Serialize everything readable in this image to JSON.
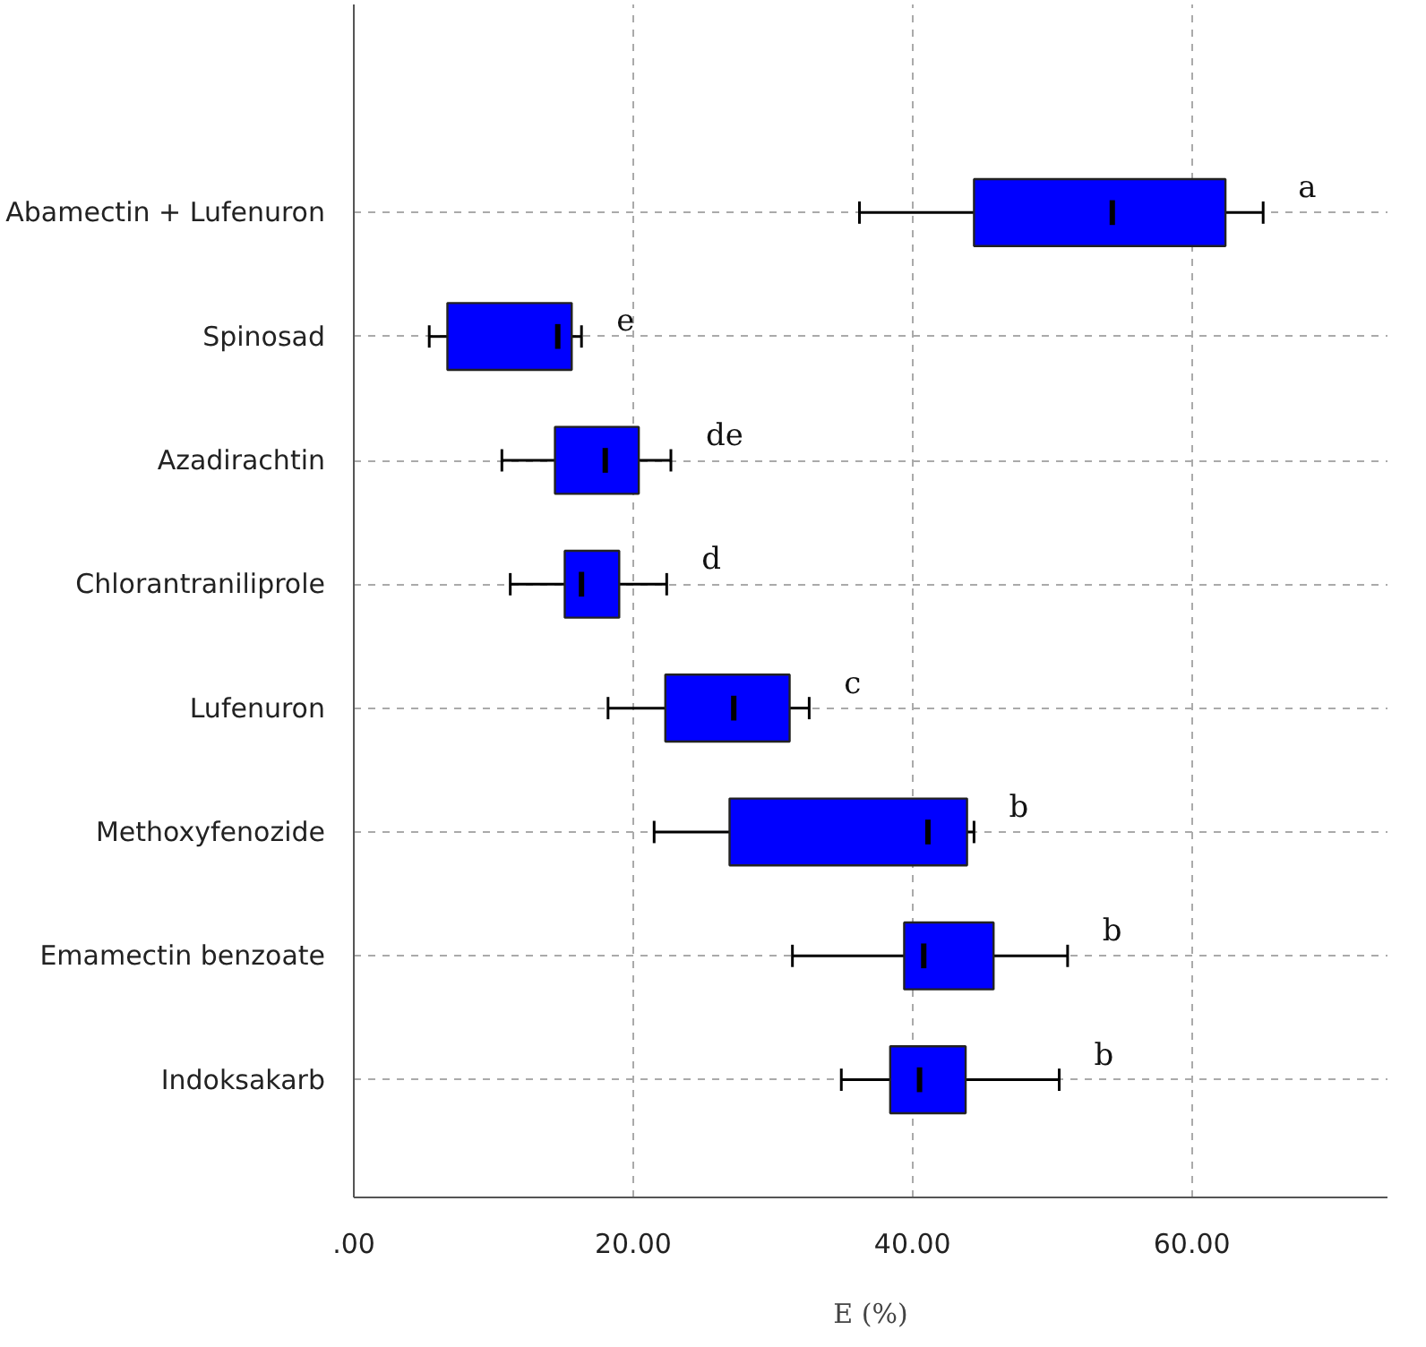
{
  "chart_data": {
    "type": "box",
    "orientation": "horizontal",
    "xlabel": "E (%)",
    "categories": [
      "Abamectin + Lufenuron",
      "Spinosad",
      "Azadirachtin",
      "Chlorantraniliprole",
      "Lufenuron",
      "Methoxyfenozide",
      "Emamectin benzoate",
      "Indoksakarb"
    ],
    "series": [
      {
        "color": "#0000ff",
        "boxes": [
          {
            "low": 36.2,
            "q1": 44.4,
            "median": 54.3,
            "q3": 62.4,
            "high": 65.1
          },
          {
            "low": 5.4,
            "q1": 6.7,
            "median": 14.6,
            "q3": 15.6,
            "high": 16.3
          },
          {
            "low": 10.6,
            "q1": 14.4,
            "median": 18.0,
            "q3": 20.4,
            "high": 22.7
          },
          {
            "low": 11.2,
            "q1": 15.1,
            "median": 16.3,
            "q3": 19.0,
            "high": 22.4
          },
          {
            "low": 18.2,
            "q1": 22.3,
            "median": 27.2,
            "q3": 31.2,
            "high": 32.6
          },
          {
            "low": 21.5,
            "q1": 26.9,
            "median": 41.1,
            "q3": 43.9,
            "high": 44.4
          },
          {
            "low": 31.4,
            "q1": 39.4,
            "median": 40.8,
            "q3": 45.8,
            "high": 51.1
          },
          {
            "low": 34.9,
            "q1": 38.4,
            "median": 40.5,
            "q3": 43.8,
            "high": 50.5
          }
        ]
      }
    ],
    "xlim": [
      0,
      74
    ],
    "xticks": [
      {
        "value": 0,
        "label": ".00"
      },
      {
        "value": 20,
        "label": "20.00"
      },
      {
        "value": 40,
        "label": "40.00"
      },
      {
        "value": 60,
        "label": "60.00"
      }
    ],
    "grid": true,
    "annotations": [
      "a",
      "e",
      "de",
      "d",
      "c",
      "b",
      "b",
      "b"
    ]
  }
}
